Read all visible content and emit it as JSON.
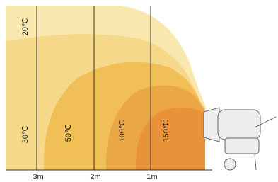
{
  "temperature_labels": [
    "20℃",
    "30℃",
    "50℃",
    "100℃",
    "150℃"
  ],
  "distance_labels": [
    "3m",
    "2m",
    "1m"
  ]
}
